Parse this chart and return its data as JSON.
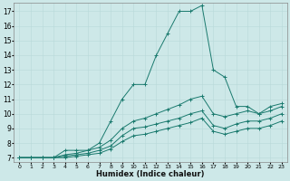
{
  "xlabel": "Humidex (Indice chaleur)",
  "xlim": [
    -0.5,
    23.5
  ],
  "ylim": [
    6.7,
    17.6
  ],
  "xticks": [
    0,
    1,
    2,
    3,
    4,
    5,
    6,
    7,
    8,
    9,
    10,
    11,
    12,
    13,
    14,
    15,
    16,
    17,
    18,
    19,
    20,
    21,
    22,
    23
  ],
  "yticks": [
    7,
    8,
    9,
    10,
    11,
    12,
    13,
    14,
    15,
    16,
    17
  ],
  "background_color": "#cde8e8",
  "grid_color": "#b8d8d8",
  "line_color": "#1a7a6e",
  "series": [
    {
      "x": [
        0,
        1,
        2,
        3,
        4,
        5,
        6,
        7,
        8,
        9,
        10,
        11,
        12,
        13,
        14,
        15,
        16,
        17,
        18,
        19,
        20,
        21,
        22,
        23
      ],
      "y": [
        7.0,
        7.0,
        7.0,
        7.0,
        7.5,
        7.5,
        7.5,
        8.0,
        9.5,
        11.0,
        12.0,
        12.0,
        14.0,
        15.5,
        17.0,
        17.0,
        17.4,
        13.0,
        12.5,
        10.5,
        10.5,
        10.0,
        10.5,
        10.7
      ]
    },
    {
      "x": [
        0,
        1,
        2,
        3,
        4,
        5,
        6,
        7,
        8,
        9,
        10,
        11,
        12,
        13,
        14,
        15,
        16,
        17,
        18,
        19,
        20,
        21,
        22,
        23
      ],
      "y": [
        7.0,
        7.0,
        7.0,
        7.0,
        7.2,
        7.3,
        7.5,
        7.7,
        8.2,
        9.0,
        9.5,
        9.7,
        10.0,
        10.3,
        10.6,
        11.0,
        11.2,
        10.0,
        9.8,
        10.0,
        10.2,
        10.0,
        10.2,
        10.5
      ]
    },
    {
      "x": [
        0,
        1,
        2,
        3,
        4,
        5,
        6,
        7,
        8,
        9,
        10,
        11,
        12,
        13,
        14,
        15,
        16,
        17,
        18,
        19,
        20,
        21,
        22,
        23
      ],
      "y": [
        7.0,
        7.0,
        7.0,
        7.0,
        7.1,
        7.2,
        7.3,
        7.5,
        7.8,
        8.5,
        9.0,
        9.1,
        9.3,
        9.5,
        9.7,
        10.0,
        10.2,
        9.2,
        9.0,
        9.3,
        9.5,
        9.5,
        9.7,
        10.0
      ]
    },
    {
      "x": [
        0,
        1,
        2,
        3,
        4,
        5,
        6,
        7,
        8,
        9,
        10,
        11,
        12,
        13,
        14,
        15,
        16,
        17,
        18,
        19,
        20,
        21,
        22,
        23
      ],
      "y": [
        7.0,
        7.0,
        7.0,
        7.0,
        7.0,
        7.1,
        7.2,
        7.3,
        7.6,
        8.1,
        8.5,
        8.6,
        8.8,
        9.0,
        9.2,
        9.4,
        9.7,
        8.8,
        8.6,
        8.8,
        9.0,
        9.0,
        9.2,
        9.5
      ]
    }
  ]
}
